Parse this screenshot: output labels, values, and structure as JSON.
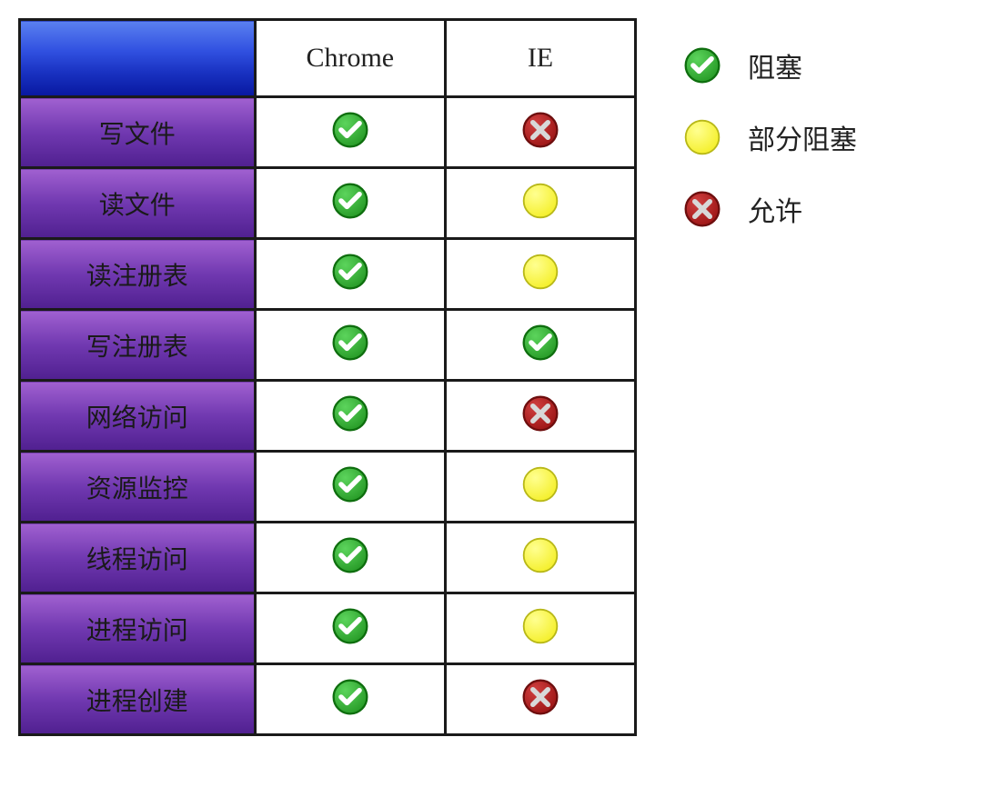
{
  "table": {
    "columns": [
      "",
      "Chrome",
      "IE"
    ],
    "rows": [
      {
        "label": "写文件",
        "chrome": "check",
        "ie": "cross"
      },
      {
        "label": "读文件",
        "chrome": "check",
        "ie": "dot"
      },
      {
        "label": "读注册表",
        "chrome": "check",
        "ie": "dot"
      },
      {
        "label": "写注册表",
        "chrome": "check",
        "ie": "check"
      },
      {
        "label": "网络访问",
        "chrome": "check",
        "ie": "cross"
      },
      {
        "label": "资源监控",
        "chrome": "check",
        "ie": "dot"
      },
      {
        "label": "线程访问",
        "chrome": "check",
        "ie": "dot"
      },
      {
        "label": "进程访问",
        "chrome": "check",
        "ie": "dot"
      },
      {
        "label": "进程创建",
        "chrome": "check",
        "ie": "cross"
      }
    ],
    "header_bg_gradient": [
      "#5078e8",
      "#1a3cc0",
      "#0818a0"
    ],
    "row_label_bg_gradient": [
      "#9050c0",
      "#6030a0",
      "#4a1c80"
    ],
    "border_color": "#1a1a1a",
    "cell_bg": "#ffffff",
    "header_fontsize": 30,
    "label_fontsize": 28
  },
  "legend": {
    "items": [
      {
        "icon": "check",
        "label": "阻塞"
      },
      {
        "icon": "dot",
        "label": "部分阻塞"
      },
      {
        "icon": "cross",
        "label": "允许"
      }
    ],
    "fontsize": 30
  },
  "icons": {
    "check": {
      "fill": "#2a9e2a",
      "fill_light": "#5cd45c",
      "stroke": "#0e6e0e",
      "mark": "#ffffff"
    },
    "dot": {
      "fill": "#f5f030",
      "fill_light": "#ffff90",
      "stroke": "#b8b818"
    },
    "cross": {
      "fill": "#a01818",
      "fill_light": "#d04040",
      "stroke": "#6e0e0e",
      "mark": "#d8d8d8"
    },
    "size": 44
  }
}
